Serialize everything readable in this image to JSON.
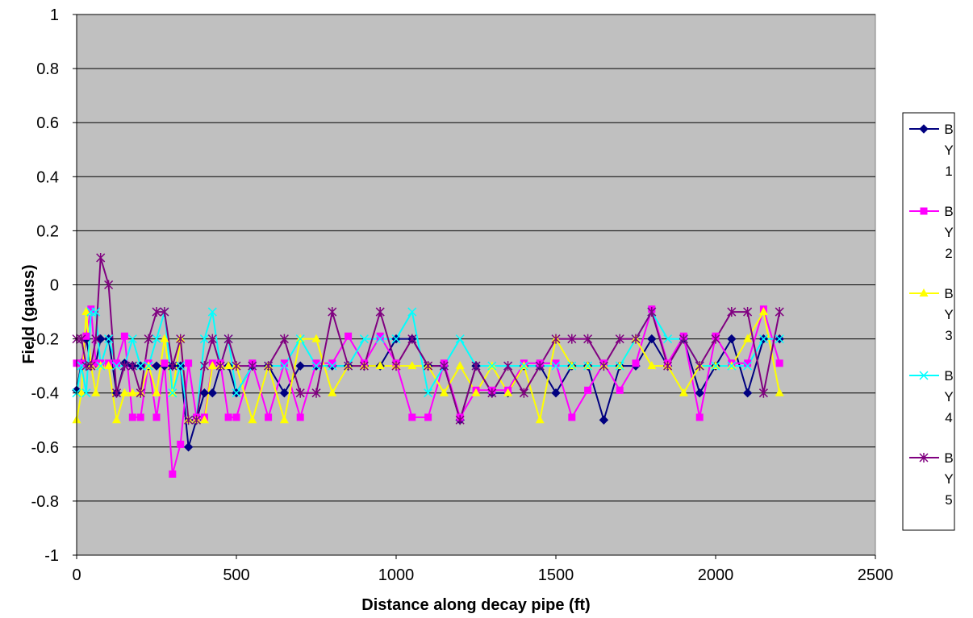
{
  "chart_data": {
    "type": "line",
    "title": "",
    "xlabel": "Distance along decay pipe (ft)",
    "ylabel": "Field (gauss)",
    "xlim": [
      0,
      2500
    ],
    "ylim": [
      -1,
      1
    ],
    "x_ticks": [
      0,
      500,
      1000,
      1500,
      2000,
      2500
    ],
    "y_ticks": [
      1,
      0.8,
      0.6,
      0.4,
      0.2,
      0,
      -0.2,
      -0.4,
      -0.6,
      -0.8,
      -1
    ],
    "x_tick_labels": [
      "0",
      "500",
      "1000",
      "1500",
      "2000",
      "2500"
    ],
    "y_tick_labels": [
      "1",
      "0.8",
      "0.6",
      "0.4",
      "0.2",
      "0",
      "-0.2",
      "-0.4",
      "-0.6",
      "-0.8",
      "-1"
    ],
    "grid": "horizontal",
    "plot_background": "#c0c0c0",
    "legend_position": "right",
    "series": [
      {
        "name": "B Y 1",
        "color": "#000080",
        "marker": "diamond",
        "points": [
          [
            0,
            -0.39
          ],
          [
            15,
            -0.29
          ],
          [
            30,
            -0.2
          ],
          [
            45,
            -0.3
          ],
          [
            60,
            -0.29
          ],
          [
            75,
            -0.2
          ],
          [
            100,
            -0.2
          ],
          [
            125,
            -0.4
          ],
          [
            150,
            -0.29
          ],
          [
            175,
            -0.3
          ],
          [
            200,
            -0.3
          ],
          [
            225,
            -0.3
          ],
          [
            250,
            -0.3
          ],
          [
            275,
            -0.3
          ],
          [
            300,
            -0.3
          ],
          [
            325,
            -0.3
          ],
          [
            350,
            -0.6
          ],
          [
            375,
            -0.5
          ],
          [
            400,
            -0.4
          ],
          [
            425,
            -0.4
          ],
          [
            450,
            -0.3
          ],
          [
            475,
            -0.3
          ],
          [
            500,
            -0.4
          ],
          [
            550,
            -0.3
          ],
          [
            600,
            -0.3
          ],
          [
            650,
            -0.4
          ],
          [
            700,
            -0.3
          ],
          [
            750,
            -0.3
          ],
          [
            800,
            -0.3
          ],
          [
            850,
            -0.3
          ],
          [
            900,
            -0.3
          ],
          [
            950,
            -0.3
          ],
          [
            1000,
            -0.2
          ],
          [
            1050,
            -0.2
          ],
          [
            1100,
            -0.3
          ],
          [
            1150,
            -0.3
          ],
          [
            1200,
            -0.5
          ],
          [
            1250,
            -0.3
          ],
          [
            1300,
            -0.4
          ],
          [
            1350,
            -0.4
          ],
          [
            1400,
            -0.3
          ],
          [
            1450,
            -0.3
          ],
          [
            1500,
            -0.4
          ],
          [
            1550,
            -0.3
          ],
          [
            1600,
            -0.3
          ],
          [
            1650,
            -0.5
          ],
          [
            1700,
            -0.3
          ],
          [
            1750,
            -0.3
          ],
          [
            1800,
            -0.2
          ],
          [
            1850,
            -0.3
          ],
          [
            1900,
            -0.2
          ],
          [
            1950,
            -0.4
          ],
          [
            2000,
            -0.3
          ],
          [
            2050,
            -0.2
          ],
          [
            2100,
            -0.4
          ],
          [
            2150,
            -0.2
          ],
          [
            2200,
            -0.2
          ]
        ]
      },
      {
        "name": "B Y 2",
        "color": "#ff00ff",
        "marker": "square",
        "points": [
          [
            0,
            -0.29
          ],
          [
            15,
            -0.29
          ],
          [
            30,
            -0.19
          ],
          [
            45,
            -0.09
          ],
          [
            60,
            -0.29
          ],
          [
            75,
            -0.29
          ],
          [
            100,
            -0.29
          ],
          [
            125,
            -0.29
          ],
          [
            150,
            -0.19
          ],
          [
            175,
            -0.49
          ],
          [
            200,
            -0.49
          ],
          [
            225,
            -0.29
          ],
          [
            250,
            -0.49
          ],
          [
            275,
            -0.29
          ],
          [
            300,
            -0.7
          ],
          [
            325,
            -0.59
          ],
          [
            350,
            -0.29
          ],
          [
            375,
            -0.49
          ],
          [
            400,
            -0.49
          ],
          [
            425,
            -0.29
          ],
          [
            450,
            -0.29
          ],
          [
            475,
            -0.49
          ],
          [
            500,
            -0.49
          ],
          [
            550,
            -0.29
          ],
          [
            600,
            -0.49
          ],
          [
            650,
            -0.29
          ],
          [
            700,
            -0.49
          ],
          [
            750,
            -0.29
          ],
          [
            800,
            -0.29
          ],
          [
            850,
            -0.19
          ],
          [
            900,
            -0.29
          ],
          [
            950,
            -0.19
          ],
          [
            1000,
            -0.29
          ],
          [
            1050,
            -0.49
          ],
          [
            1100,
            -0.49
          ],
          [
            1150,
            -0.29
          ],
          [
            1200,
            -0.49
          ],
          [
            1250,
            -0.39
          ],
          [
            1300,
            -0.39
          ],
          [
            1350,
            -0.39
          ],
          [
            1400,
            -0.29
          ],
          [
            1450,
            -0.29
          ],
          [
            1500,
            -0.29
          ],
          [
            1550,
            -0.49
          ],
          [
            1600,
            -0.39
          ],
          [
            1650,
            -0.29
          ],
          [
            1700,
            -0.39
          ],
          [
            1750,
            -0.29
          ],
          [
            1800,
            -0.09
          ],
          [
            1850,
            -0.29
          ],
          [
            1900,
            -0.19
          ],
          [
            1950,
            -0.49
          ],
          [
            2000,
            -0.19
          ],
          [
            2050,
            -0.29
          ],
          [
            2100,
            -0.29
          ],
          [
            2150,
            -0.09
          ],
          [
            2200,
            -0.29
          ]
        ]
      },
      {
        "name": "B Y 3",
        "color": "#ffff00",
        "marker": "triangle",
        "points": [
          [
            0,
            -0.5
          ],
          [
            15,
            -0.4
          ],
          [
            30,
            -0.1
          ],
          [
            45,
            -0.3
          ],
          [
            60,
            -0.4
          ],
          [
            75,
            -0.3
          ],
          [
            100,
            -0.3
          ],
          [
            125,
            -0.5
          ],
          [
            150,
            -0.4
          ],
          [
            175,
            -0.4
          ],
          [
            200,
            -0.4
          ],
          [
            225,
            -0.3
          ],
          [
            250,
            -0.4
          ],
          [
            275,
            -0.2
          ],
          [
            300,
            -0.4
          ],
          [
            325,
            -0.2
          ],
          [
            350,
            -0.5
          ],
          [
            375,
            -0.5
          ],
          [
            400,
            -0.5
          ],
          [
            425,
            -0.3
          ],
          [
            450,
            -0.3
          ],
          [
            475,
            -0.3
          ],
          [
            500,
            -0.3
          ],
          [
            550,
            -0.5
          ],
          [
            600,
            -0.3
          ],
          [
            650,
            -0.5
          ],
          [
            700,
            -0.2
          ],
          [
            750,
            -0.2
          ],
          [
            800,
            -0.4
          ],
          [
            850,
            -0.3
          ],
          [
            900,
            -0.3
          ],
          [
            950,
            -0.3
          ],
          [
            1000,
            -0.3
          ],
          [
            1050,
            -0.3
          ],
          [
            1100,
            -0.3
          ],
          [
            1150,
            -0.4
          ],
          [
            1200,
            -0.3
          ],
          [
            1250,
            -0.4
          ],
          [
            1300,
            -0.3
          ],
          [
            1350,
            -0.4
          ],
          [
            1400,
            -0.3
          ],
          [
            1450,
            -0.5
          ],
          [
            1500,
            -0.2
          ],
          [
            1550,
            -0.3
          ],
          [
            1600,
            -0.3
          ],
          [
            1650,
            -0.3
          ],
          [
            1700,
            -0.3
          ],
          [
            1750,
            -0.2
          ],
          [
            1800,
            -0.3
          ],
          [
            1850,
            -0.3
          ],
          [
            1900,
            -0.4
          ],
          [
            1950,
            -0.3
          ],
          [
            2000,
            -0.3
          ],
          [
            2050,
            -0.3
          ],
          [
            2100,
            -0.2
          ],
          [
            2150,
            -0.1
          ],
          [
            2200,
            -0.4
          ]
        ]
      },
      {
        "name": "B Y 4",
        "color": "#00ffff",
        "marker": "x",
        "points": [
          [
            0,
            -0.4
          ],
          [
            15,
            -0.3
          ],
          [
            30,
            -0.4
          ],
          [
            45,
            -0.1
          ],
          [
            60,
            -0.1
          ],
          [
            75,
            -0.3
          ],
          [
            100,
            -0.2
          ],
          [
            125,
            -0.3
          ],
          [
            150,
            -0.3
          ],
          [
            175,
            -0.2
          ],
          [
            200,
            -0.3
          ],
          [
            225,
            -0.3
          ],
          [
            250,
            -0.2
          ],
          [
            275,
            -0.1
          ],
          [
            300,
            -0.4
          ],
          [
            325,
            -0.3
          ],
          [
            350,
            -0.5
          ],
          [
            375,
            -0.5
          ],
          [
            400,
            -0.2
          ],
          [
            425,
            -0.1
          ],
          [
            450,
            -0.3
          ],
          [
            475,
            -0.2
          ],
          [
            500,
            -0.4
          ],
          [
            550,
            -0.3
          ],
          [
            600,
            -0.3
          ],
          [
            650,
            -0.3
          ],
          [
            700,
            -0.2
          ],
          [
            750,
            -0.3
          ],
          [
            800,
            -0.3
          ],
          [
            850,
            -0.3
          ],
          [
            900,
            -0.2
          ],
          [
            950,
            -0.2
          ],
          [
            1000,
            -0.2
          ],
          [
            1050,
            -0.1
          ],
          [
            1100,
            -0.4
          ],
          [
            1150,
            -0.3
          ],
          [
            1200,
            -0.2
          ],
          [
            1250,
            -0.3
          ],
          [
            1300,
            -0.3
          ],
          [
            1350,
            -0.3
          ],
          [
            1400,
            -0.3
          ],
          [
            1450,
            -0.3
          ],
          [
            1500,
            -0.3
          ],
          [
            1550,
            -0.3
          ],
          [
            1600,
            -0.3
          ],
          [
            1650,
            -0.3
          ],
          [
            1700,
            -0.3
          ],
          [
            1750,
            -0.2
          ],
          [
            1800,
            -0.1
          ],
          [
            1850,
            -0.2
          ],
          [
            1900,
            -0.2
          ],
          [
            1950,
            -0.3
          ],
          [
            2000,
            -0.3
          ],
          [
            2050,
            -0.3
          ],
          [
            2100,
            -0.3
          ],
          [
            2150,
            -0.2
          ],
          [
            2200,
            -0.2
          ]
        ]
      },
      {
        "name": "B Y 5",
        "color": "#800080",
        "marker": "star",
        "points": [
          [
            0,
            -0.2
          ],
          [
            15,
            -0.2
          ],
          [
            30,
            -0.3
          ],
          [
            45,
            -0.3
          ],
          [
            60,
            -0.2
          ],
          [
            75,
            0.1
          ],
          [
            100,
            0.0
          ],
          [
            125,
            -0.4
          ],
          [
            150,
            -0.3
          ],
          [
            175,
            -0.3
          ],
          [
            200,
            -0.4
          ],
          [
            225,
            -0.2
          ],
          [
            250,
            -0.1
          ],
          [
            275,
            -0.1
          ],
          [
            300,
            -0.3
          ],
          [
            325,
            -0.2
          ],
          [
            350,
            -0.5
          ],
          [
            375,
            -0.5
          ],
          [
            400,
            -0.3
          ],
          [
            425,
            -0.2
          ],
          [
            450,
            -0.3
          ],
          [
            475,
            -0.2
          ],
          [
            500,
            -0.3
          ],
          [
            550,
            -0.3
          ],
          [
            600,
            -0.3
          ],
          [
            650,
            -0.2
          ],
          [
            700,
            -0.4
          ],
          [
            750,
            -0.4
          ],
          [
            800,
            -0.1
          ],
          [
            850,
            -0.3
          ],
          [
            900,
            -0.3
          ],
          [
            950,
            -0.1
          ],
          [
            1000,
            -0.3
          ],
          [
            1050,
            -0.2
          ],
          [
            1100,
            -0.3
          ],
          [
            1150,
            -0.3
          ],
          [
            1200,
            -0.5
          ],
          [
            1250,
            -0.3
          ],
          [
            1300,
            -0.4
          ],
          [
            1350,
            -0.3
          ],
          [
            1400,
            -0.4
          ],
          [
            1450,
            -0.3
          ],
          [
            1500,
            -0.2
          ],
          [
            1550,
            -0.2
          ],
          [
            1600,
            -0.2
          ],
          [
            1650,
            -0.3
          ],
          [
            1700,
            -0.2
          ],
          [
            1750,
            -0.2
          ],
          [
            1800,
            -0.1
          ],
          [
            1850,
            -0.3
          ],
          [
            1900,
            -0.2
          ],
          [
            1950,
            -0.3
          ],
          [
            2000,
            -0.2
          ],
          [
            2050,
            -0.1
          ],
          [
            2100,
            -0.1
          ],
          [
            2150,
            -0.4
          ],
          [
            2200,
            -0.1
          ]
        ]
      }
    ]
  }
}
